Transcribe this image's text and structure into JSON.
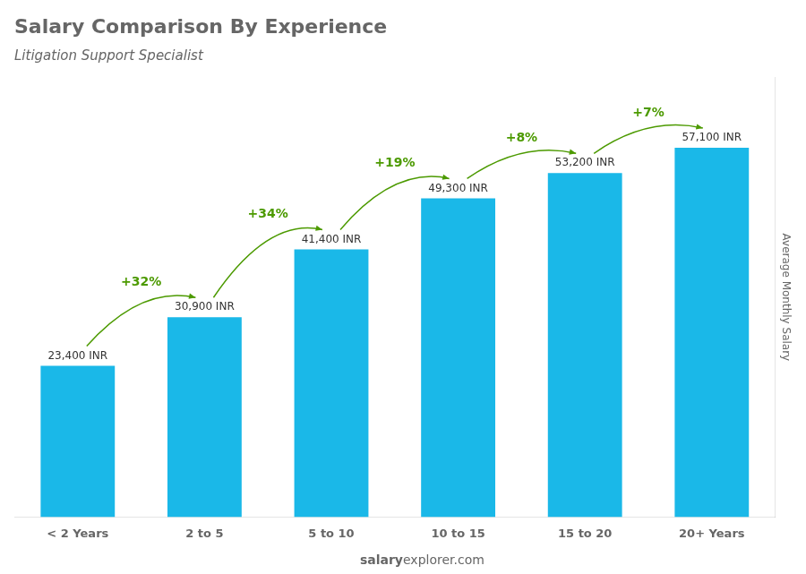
{
  "chart_data": {
    "type": "bar",
    "title": "Salary Comparison By Experience",
    "subtitle": "Litigation Support Specialist",
    "categories": [
      "< 2 Years",
      "2 to 5",
      "5 to 10",
      "10 to 15",
      "15 to 20",
      "20+ Years"
    ],
    "values": [
      23400,
      30900,
      41400,
      49300,
      53200,
      57100
    ],
    "value_labels": [
      "23,400 INR",
      "30,900 INR",
      "41,400 INR",
      "49,300 INR",
      "53,200 INR",
      "57,100 INR"
    ],
    "data_labels": true,
    "color": "#1ab8e8",
    "ylabel": "Average Monthly Salary",
    "ylim": [
      0,
      68000
    ],
    "grid": false,
    "tick_labels": "x",
    "annotations": [
      "+32%",
      "+34%",
      "+19%",
      "+8%",
      "+7%"
    ],
    "footer": [
      "salary",
      "explorer.com"
    ]
  }
}
